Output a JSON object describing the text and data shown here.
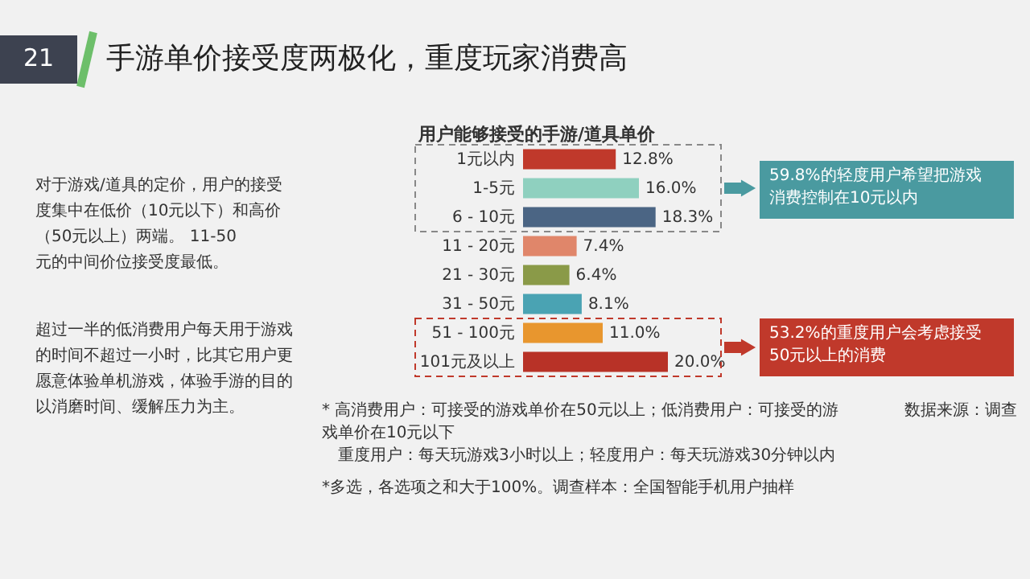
{
  "chart_data": {
    "type": "bar",
    "orientation": "horizontal",
    "value_labels": [
      "12.8%",
      "16.0%",
      "18.3%",
      "7.4%",
      "6.4%",
      "8.1%",
      "11.0%",
      "20.0%"
    ],
    "title": "手游单价接受度两极化，重度玩家消费高",
    "subtitle": "用户能够接受的手游/道具单价",
    "categories": [
      "1元以内",
      "1-5元",
      "6 - 10元",
      "11 - 20元",
      "21 - 30元",
      "31 - 50元",
      "51 - 100元",
      "101元及以上"
    ],
    "values": [
      12.8,
      16.0,
      18.3,
      7.4,
      6.4,
      8.1,
      11.0,
      20.0
    ],
    "colors": [
      "#c0392b",
      "#8fd0bf",
      "#4b6584",
      "#e0866a",
      "#8a9a48",
      "#4aa3b3",
      "#e8962e",
      "#b83227"
    ],
    "annotations": [
      "21",
      "对于游戏/道具的定价，用户的接受度集中在低价（10元以下）和高价（50元以上）两端。 11-50元的中间价位接受度最低。",
      "超过一半的低消费用户每天用于游戏的时间不超过一小时，比其它用户更愿意体验单机游戏，体验手游的目的以消磨时间、缓解压力为主。",
      "59.8%的轻度用户希望把游戏消费控制在10元以内",
      "53.2%的重度用户会考虑接受50元以上的消费",
      "* 高消费用户：可接受的游戏单价在50元以上；低消费用户：可接受的游戏单价在10元以下",
      "重度用户：每天玩游戏3小时以上；轻度用户：每天玩游戏30分钟以内",
      "*多选，各选项之和大于100%。调查样本：全国智能手机用户抽样",
      "数据来源：调查"
    ]
  }
}
